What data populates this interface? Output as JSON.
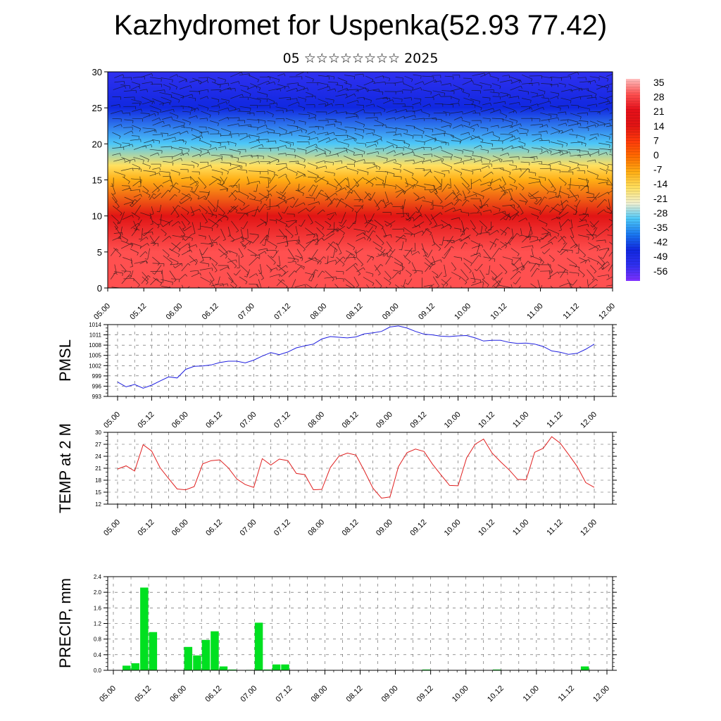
{
  "title": "Kazhydromet for Uspenka(52.93 77.42)",
  "subtitle": "05 ☆☆☆☆☆☆☆☆ 2025",
  "time_labels": [
    "05.00",
    "05.12",
    "06.00",
    "06.12",
    "07.00",
    "07.12",
    "08.00",
    "08.12",
    "09.00",
    "09.12",
    "10.00",
    "10.12",
    "11.00",
    "11.12",
    "12.00"
  ],
  "colorbar": {
    "labels": [
      "35",
      "28",
      "21",
      "14",
      "7",
      "0",
      "-7",
      "-14",
      "-21",
      "-28",
      "-35",
      "-42",
      "-49",
      "-56"
    ],
    "colors": [
      "#ffbfbf",
      "#ff5050",
      "#e6101a",
      "#e11414",
      "#ff3a0a",
      "#ff6c00",
      "#ffae14",
      "#ffe060",
      "#f0f0d0",
      "#4dc8f8",
      "#1a78f0",
      "#1028e0",
      "#3030f0",
      "#8030ff"
    ]
  },
  "chart_data": [
    {
      "type": "heatmap",
      "title": "",
      "ylim": [
        0,
        30
      ],
      "y_ticks": [
        "0",
        "5",
        "10",
        "15",
        "20",
        "25",
        "30"
      ],
      "x": [
        "05.00",
        "05.12",
        "06.00",
        "06.12",
        "07.00",
        "07.12",
        "08.00",
        "08.12",
        "09.00",
        "09.12",
        "10.00",
        "10.12",
        "11.00",
        "11.12",
        "12.00"
      ],
      "value_by_height": [
        {
          "y": 0,
          "value": 33
        },
        {
          "y": 5,
          "value": 28
        },
        {
          "y": 10,
          "value": 17
        },
        {
          "y": 15,
          "value": -3
        },
        {
          "y": 17,
          "value": -12
        },
        {
          "y": 20,
          "value": -30
        },
        {
          "y": 25,
          "value": -45
        },
        {
          "y": 30,
          "value": -50
        }
      ],
      "overlay": "wind barbs"
    },
    {
      "type": "line",
      "ylabel": "PMSL",
      "ylim": [
        993,
        1014
      ],
      "y_ticks": [
        "993",
        "996",
        "999",
        "1002",
        "1005",
        "1008",
        "1011",
        "1014"
      ],
      "x": [
        "05.00",
        "05.03",
        "05.06",
        "05.09",
        "05.12",
        "05.15",
        "05.18",
        "05.21",
        "06.00",
        "06.03",
        "06.06",
        "06.09",
        "06.12",
        "06.15",
        "06.18",
        "06.21",
        "07.00",
        "07.03",
        "07.06",
        "07.09",
        "07.12",
        "07.15",
        "07.18",
        "07.21",
        "08.00",
        "08.03",
        "08.06",
        "08.09",
        "08.12",
        "08.15",
        "08.18",
        "08.21",
        "09.00",
        "09.03",
        "09.06",
        "09.09",
        "09.12",
        "09.15",
        "09.18",
        "09.21",
        "10.00",
        "10.03",
        "10.06",
        "10.09",
        "10.12",
        "10.15",
        "10.18",
        "10.21",
        "11.00",
        "11.03",
        "11.06",
        "11.09",
        "11.12",
        "11.15",
        "11.18",
        "11.21",
        "12.00"
      ],
      "series": [
        {
          "values": [
            997.2,
            995.8,
            996.5,
            995.4,
            996.3,
            997.5,
            998.7,
            998.4,
            1000.9,
            1001.8,
            1001.9,
            1002.2,
            1002.9,
            1003.3,
            1003.3,
            1002.8,
            1003.6,
            1004.8,
            1005.8,
            1005.2,
            1006.0,
            1007.2,
            1007.8,
            1008.3,
            1009.8,
            1010.5,
            1010.3,
            1010.1,
            1010.4,
            1011.3,
            1011.6,
            1012.0,
            1013.3,
            1013.6,
            1013.0,
            1012.0,
            1011.2,
            1011.0,
            1010.6,
            1010.5,
            1010.7,
            1010.8,
            1010.1,
            1009.2,
            1009.4,
            1009.4,
            1008.8,
            1008.5,
            1008.6,
            1008.3,
            1007.6,
            1006.3,
            1005.9,
            1005.3,
            1005.6,
            1006.8,
            1008.3
          ],
          "color": "#2020e0"
        }
      ]
    },
    {
      "type": "line",
      "ylabel": "TEMP at 2 M",
      "ylim": [
        12,
        30
      ],
      "y_ticks": [
        "12",
        "15",
        "18",
        "21",
        "24",
        "27",
        "30"
      ],
      "x": [
        "05.00",
        "05.03",
        "05.06",
        "05.09",
        "05.12",
        "05.15",
        "05.18",
        "05.21",
        "06.00",
        "06.03",
        "06.06",
        "06.09",
        "06.12",
        "06.15",
        "06.18",
        "06.21",
        "07.00",
        "07.03",
        "07.06",
        "07.09",
        "07.12",
        "07.15",
        "07.18",
        "07.21",
        "08.00",
        "08.03",
        "08.06",
        "08.09",
        "08.12",
        "08.15",
        "08.18",
        "08.21",
        "09.00",
        "09.03",
        "09.06",
        "09.09",
        "09.12",
        "09.15",
        "09.18",
        "09.21",
        "10.00",
        "10.03",
        "10.06",
        "10.09",
        "10.12",
        "10.15",
        "10.18",
        "10.21",
        "11.00",
        "11.03",
        "11.06",
        "11.09",
        "11.12",
        "11.15",
        "11.18",
        "11.21",
        "12.00"
      ],
      "series": [
        {
          "values": [
            20.8,
            21.6,
            20.3,
            26.9,
            25.3,
            21.1,
            18.4,
            15.8,
            15.6,
            16.4,
            22.1,
            22.9,
            23.1,
            21.1,
            18.3,
            16.9,
            16.2,
            23.4,
            21.8,
            23.3,
            22.9,
            19.7,
            19.4,
            15.6,
            15.7,
            21.2,
            24.0,
            24.8,
            24.3,
            20.3,
            16.0,
            13.5,
            13.8,
            21.4,
            24.9,
            25.8,
            25.2,
            22.0,
            19.3,
            16.7,
            16.6,
            23.6,
            27.0,
            28.3,
            24.8,
            22.6,
            20.6,
            18.2,
            18.1,
            25.0,
            26.0,
            28.9,
            27.3,
            24.4,
            21.4,
            17.4,
            16.2
          ],
          "color": "#e02020"
        }
      ]
    },
    {
      "type": "bar",
      "ylabel": "PRECIP, mm",
      "ylim": [
        0,
        2.4
      ],
      "y_ticks": [
        "0.0",
        "0.4",
        "0.8",
        "1.2",
        "1.6",
        "2.0",
        "2.4"
      ],
      "x_tick_labels": [
        "05.00",
        "05.12",
        "06.00",
        "06.12",
        "07.00",
        "07.12",
        "08.00",
        "08.12",
        "09.00",
        "09.12",
        "10.00",
        "10.12",
        "11.00",
        "11.12",
        "12.00"
      ],
      "categories": [
        "05.00",
        "05.03",
        "05.06",
        "05.09",
        "05.12",
        "05.15",
        "05.18",
        "05.21",
        "06.00",
        "06.03",
        "06.06",
        "06.09",
        "06.12",
        "06.15",
        "06.18",
        "06.21",
        "07.00",
        "07.03",
        "07.06",
        "07.09",
        "07.12",
        "07.15",
        "07.18",
        "07.21",
        "08.00",
        "08.03",
        "08.06",
        "08.09",
        "08.12",
        "08.15",
        "08.18",
        "08.21",
        "09.00",
        "09.03",
        "09.06",
        "09.09",
        "09.12",
        "09.15",
        "09.18",
        "09.21",
        "10.00",
        "10.03",
        "10.06",
        "10.09",
        "10.12",
        "10.15",
        "10.18",
        "10.21",
        "11.00",
        "11.03",
        "11.06",
        "11.09",
        "11.12",
        "11.15",
        "11.18",
        "11.21"
      ],
      "values": [
        0,
        0.12,
        0.18,
        2.12,
        0.98,
        0,
        0,
        0,
        0.6,
        0.38,
        0.78,
        1.0,
        0.1,
        0.02,
        0,
        0.01,
        1.22,
        0.02,
        0.15,
        0.15,
        0,
        0,
        0,
        0,
        0,
        0,
        0,
        0,
        0,
        0,
        0,
        0,
        0,
        0,
        0,
        0.02,
        0,
        0,
        0,
        0,
        0,
        0,
        0,
        0.02,
        0,
        0,
        0,
        0,
        0,
        0,
        0,
        0,
        0,
        0.1,
        0,
        0
      ],
      "color": "#00e020"
    }
  ]
}
